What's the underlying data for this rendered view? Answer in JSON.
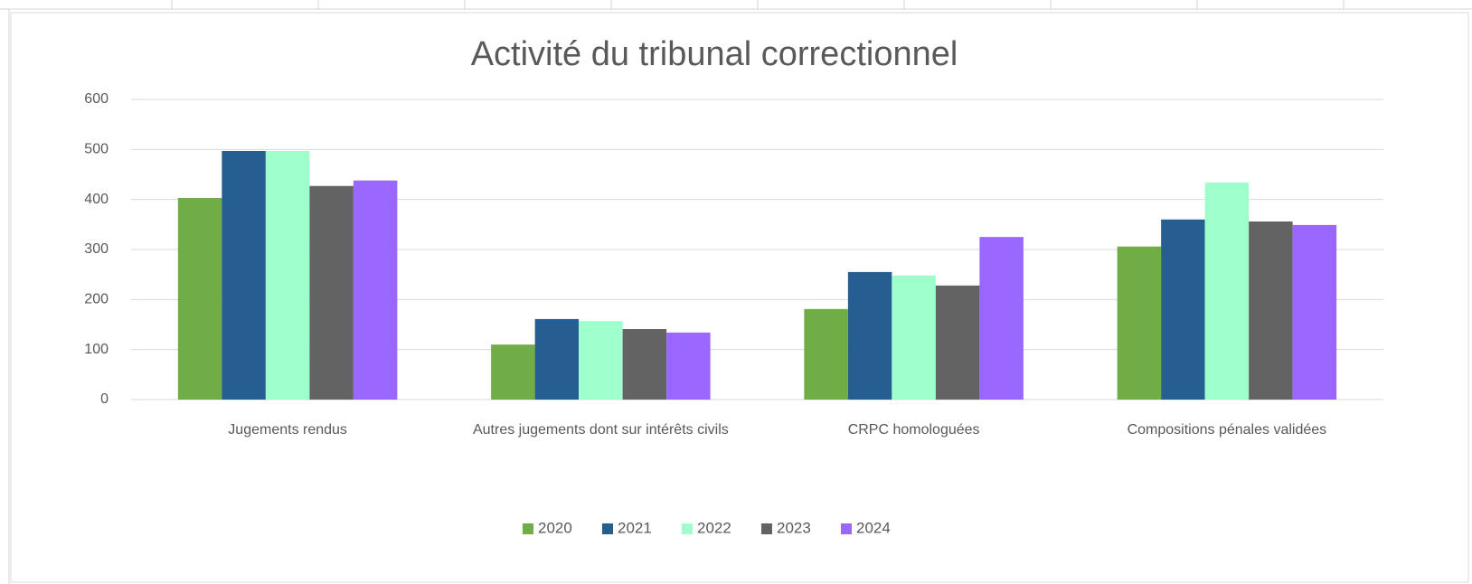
{
  "chart_data": {
    "type": "bar",
    "title": "Activité du tribunal correctionnel",
    "categories": [
      "Jugements rendus",
      "Autres jugements dont sur intérêts civils",
      "CRPC homologuées",
      "Compositions pénales validées"
    ],
    "series": [
      {
        "name": "2020",
        "color": "#70ad47",
        "values": [
          403,
          110,
          181,
          306
        ]
      },
      {
        "name": "2021",
        "color": "#255e91",
        "values": [
          497,
          161,
          255,
          360
        ]
      },
      {
        "name": "2022",
        "color": "#9effcc",
        "values": [
          497,
          157,
          248,
          434
        ]
      },
      {
        "name": "2023",
        "color": "#636363",
        "values": [
          427,
          141,
          228,
          356
        ]
      },
      {
        "name": "2024",
        "color": "#9966ff",
        "values": [
          438,
          134,
          325,
          349
        ]
      }
    ],
    "ylim": [
      0,
      600
    ],
    "yticks": [
      0,
      100,
      200,
      300,
      400,
      500,
      600
    ],
    "grid": true,
    "legend": "bottom"
  }
}
